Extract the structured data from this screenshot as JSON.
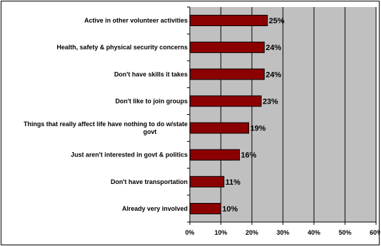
{
  "chart_data": {
    "type": "bar",
    "orientation": "horizontal",
    "categories": [
      "Active in other volunteer activities",
      "Health, safety & physical security concerns",
      "Don't have skills it takes",
      "Don't like to join groups",
      "Things that really affect life have nothing to do w/state govt",
      "Just aren't interested in govt & politics",
      "Don't have transportation",
      "Already very involved"
    ],
    "category_lines": [
      [
        "Active in other volunteer activities"
      ],
      [
        "Health, safety & physical security concerns"
      ],
      [
        "Don't have skills it takes"
      ],
      [
        "Don't like to join groups"
      ],
      [
        "Things that really affect life have nothing to do w/state",
        "govt"
      ],
      [
        "Just aren't interested in govt & politics"
      ],
      [
        "Don't have transportation"
      ],
      [
        "Already very involved"
      ]
    ],
    "values": [
      25,
      24,
      24,
      23,
      19,
      16,
      11,
      10
    ],
    "value_labels": [
      "25%",
      "24%",
      "24%",
      "23%",
      "19%",
      "16%",
      "11%",
      "10%"
    ],
    "xlim": [
      0,
      60
    ],
    "xticks": [
      0,
      10,
      20,
      30,
      40,
      50,
      60
    ],
    "xtick_labels": [
      "0%",
      "10%",
      "20%",
      "30%",
      "40%",
      "50%",
      "60%"
    ],
    "title": "",
    "xlabel": "",
    "ylabel": "",
    "grid": true,
    "legend": "none",
    "colors": {
      "bar_fill": "#8b0000",
      "bar_edge": "#000000",
      "plot_background": "#c0c0c0",
      "gridline": "#000000"
    }
  }
}
